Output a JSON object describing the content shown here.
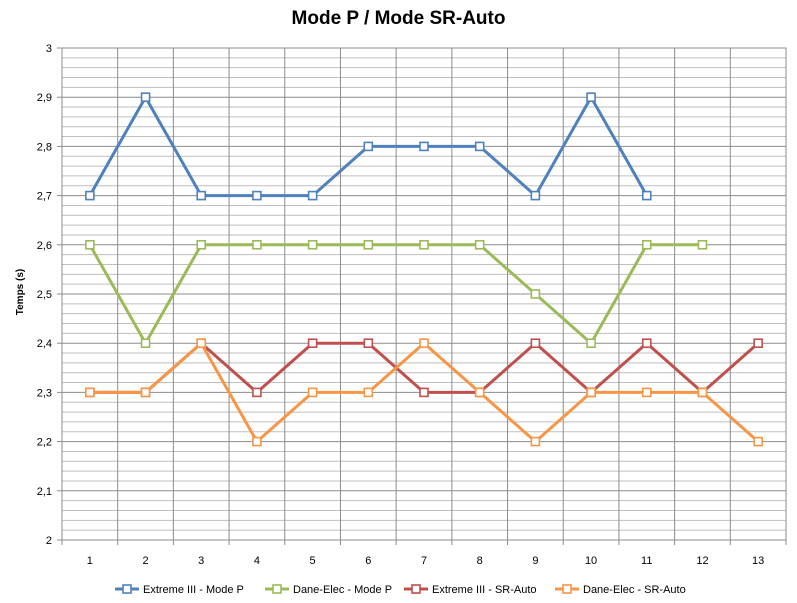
{
  "chart_data": {
    "type": "line",
    "title": "Mode P / Mode SR-Auto",
    "xlabel": "",
    "ylabel": "Temps (s)",
    "categories": [
      "1",
      "2",
      "3",
      "4",
      "5",
      "6",
      "7",
      "8",
      "9",
      "10",
      "11",
      "12",
      "13"
    ],
    "ylim": [
      2,
      3
    ],
    "ymajor": 0.1,
    "yminor": 0.02,
    "ytick_labels": [
      "2",
      "2,1",
      "2,2",
      "2,3",
      "2,4",
      "2,5",
      "2,6",
      "2,7",
      "2,8",
      "2,9",
      "3"
    ],
    "grid": true,
    "legend_position": "bottom",
    "series": [
      {
        "name": "Extreme III - Mode P",
        "color": "#4f81bd",
        "values": [
          2.7,
          2.9,
          2.7,
          2.7,
          2.7,
          2.8,
          2.8,
          2.8,
          2.7,
          2.9,
          2.7,
          null,
          null
        ]
      },
      {
        "name": "Dane-Elec - Mode P",
        "color": "#9bbb59",
        "values": [
          2.6,
          2.4,
          2.6,
          2.6,
          2.6,
          2.6,
          2.6,
          2.6,
          2.5,
          2.4,
          2.6,
          2.6,
          null
        ]
      },
      {
        "name": "Extreme III - SR-Auto",
        "color": "#c0504d",
        "values": [
          2.3,
          2.3,
          2.4,
          2.3,
          2.4,
          2.4,
          2.3,
          2.3,
          2.4,
          2.3,
          2.4,
          2.3,
          2.4
        ]
      },
      {
        "name": "Dane-Elec - SR-Auto",
        "color": "#f79646",
        "values": [
          2.3,
          2.3,
          2.4,
          2.2,
          2.3,
          2.3,
          2.4,
          2.3,
          2.2,
          2.3,
          2.3,
          2.3,
          2.2
        ]
      }
    ]
  }
}
